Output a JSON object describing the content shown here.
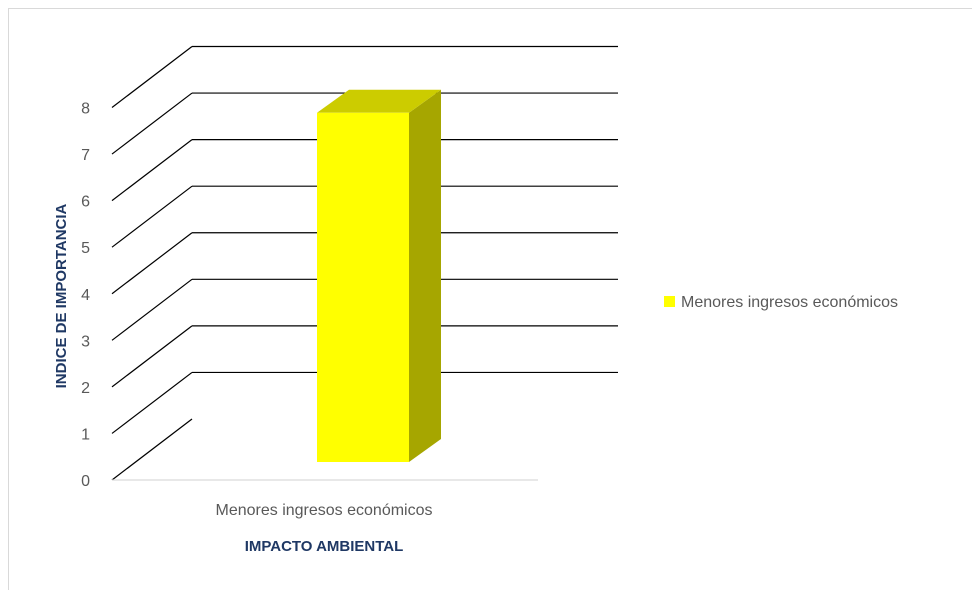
{
  "chart_data": {
    "type": "bar",
    "categories": [
      "Menores ingresos económicos"
    ],
    "series": [
      {
        "name": "Menores ingresos económicos",
        "values": [
          7.5
        ]
      }
    ],
    "xlabel": "IMPACTO AMBIENTAL",
    "ylabel": "INDICE DE IMPORTANCIA",
    "ylim": [
      0,
      8
    ],
    "yticks": [
      "0",
      "1",
      "2",
      "3",
      "4",
      "5",
      "6",
      "7",
      "8"
    ],
    "grid": true,
    "legend": "right",
    "style": "3d-column",
    "colors": {
      "front": "#ffff00",
      "top": "#cccc00",
      "side": "#a6a600",
      "grid": "#000000",
      "axis_title": "#1f3864"
    }
  }
}
